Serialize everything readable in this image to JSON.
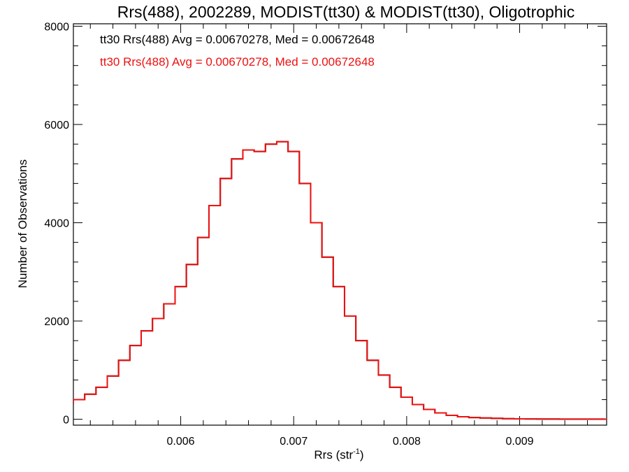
{
  "chart_data": {
    "type": "line",
    "title": "Rrs(488), 2002289, MODIST(tt30) & MODIST(tt30), Oligotrophic",
    "xlabel_main": "Rrs (str",
    "xlabel_sup": "-1",
    "xlabel_end": ")",
    "ylabel": "Number of Observations",
    "xlim": [
      0.00505,
      0.00977
    ],
    "ylim": [
      -120,
      8050
    ],
    "x_ticks": [
      0.006,
      0.007,
      0.008,
      0.009
    ],
    "x_tick_labels": [
      "0.006",
      "0.007",
      "0.008",
      "0.009"
    ],
    "y_ticks": [
      0,
      2000,
      4000,
      6000,
      8000
    ],
    "y_tick_labels": [
      "0",
      "2000",
      "4000",
      "6000",
      "8000"
    ],
    "grid": false,
    "annotations": [
      {
        "text": "tt30 Rrs(488) Avg = 0.00670278, Med = 0.00672648",
        "color": "#000000"
      },
      {
        "text": "tt30 Rrs(488) Avg = 0.00670278, Med = 0.00672648",
        "color": "#ee1111"
      }
    ],
    "series": [
      {
        "name": "tt30 Rrs(488)",
        "color": "#000000",
        "x": [
          0.005,
          0.0051,
          0.0052,
          0.0053,
          0.0054,
          0.0055,
          0.0056,
          0.0057,
          0.0058,
          0.0059,
          0.006,
          0.0061,
          0.0062,
          0.0063,
          0.0064,
          0.0065,
          0.0066,
          0.0067,
          0.0068,
          0.0069,
          0.007,
          0.0071,
          0.0072,
          0.0073,
          0.0074,
          0.0075,
          0.0076,
          0.0077,
          0.0078,
          0.0079,
          0.008,
          0.0081,
          0.0082,
          0.0083,
          0.0084,
          0.0085,
          0.0086,
          0.0087,
          0.0088,
          0.0089,
          0.009,
          0.0091,
          0.0092,
          0.0093,
          0.0094,
          0.0095,
          0.0096,
          0.0097,
          0.0098
        ],
        "values": [
          330,
          400,
          510,
          650,
          880,
          1200,
          1500,
          1800,
          2050,
          2350,
          2700,
          3150,
          3700,
          4350,
          4900,
          5300,
          5480,
          5450,
          5600,
          5650,
          5450,
          4800,
          4000,
          3300,
          2700,
          2100,
          1600,
          1200,
          900,
          650,
          450,
          300,
          200,
          130,
          80,
          50,
          35,
          25,
          18,
          12,
          8,
          6,
          5,
          4,
          3,
          3,
          2,
          2,
          1
        ]
      },
      {
        "name": "tt30 Rrs(488)",
        "color": "#ee1111",
        "x": [
          0.005,
          0.0051,
          0.0052,
          0.0053,
          0.0054,
          0.0055,
          0.0056,
          0.0057,
          0.0058,
          0.0059,
          0.006,
          0.0061,
          0.0062,
          0.0063,
          0.0064,
          0.0065,
          0.0066,
          0.0067,
          0.0068,
          0.0069,
          0.007,
          0.0071,
          0.0072,
          0.0073,
          0.0074,
          0.0075,
          0.0076,
          0.0077,
          0.0078,
          0.0079,
          0.008,
          0.0081,
          0.0082,
          0.0083,
          0.0084,
          0.0085,
          0.0086,
          0.0087,
          0.0088,
          0.0089,
          0.009,
          0.0091,
          0.0092,
          0.0093,
          0.0094,
          0.0095,
          0.0096,
          0.0097,
          0.0098
        ],
        "values": [
          330,
          400,
          510,
          650,
          880,
          1200,
          1500,
          1800,
          2050,
          2350,
          2700,
          3150,
          3700,
          4350,
          4900,
          5300,
          5480,
          5450,
          5600,
          5650,
          5450,
          4800,
          4000,
          3300,
          2700,
          2100,
          1600,
          1200,
          900,
          650,
          450,
          300,
          200,
          130,
          80,
          50,
          35,
          25,
          18,
          12,
          8,
          6,
          5,
          4,
          3,
          3,
          2,
          2,
          1
        ]
      }
    ]
  }
}
